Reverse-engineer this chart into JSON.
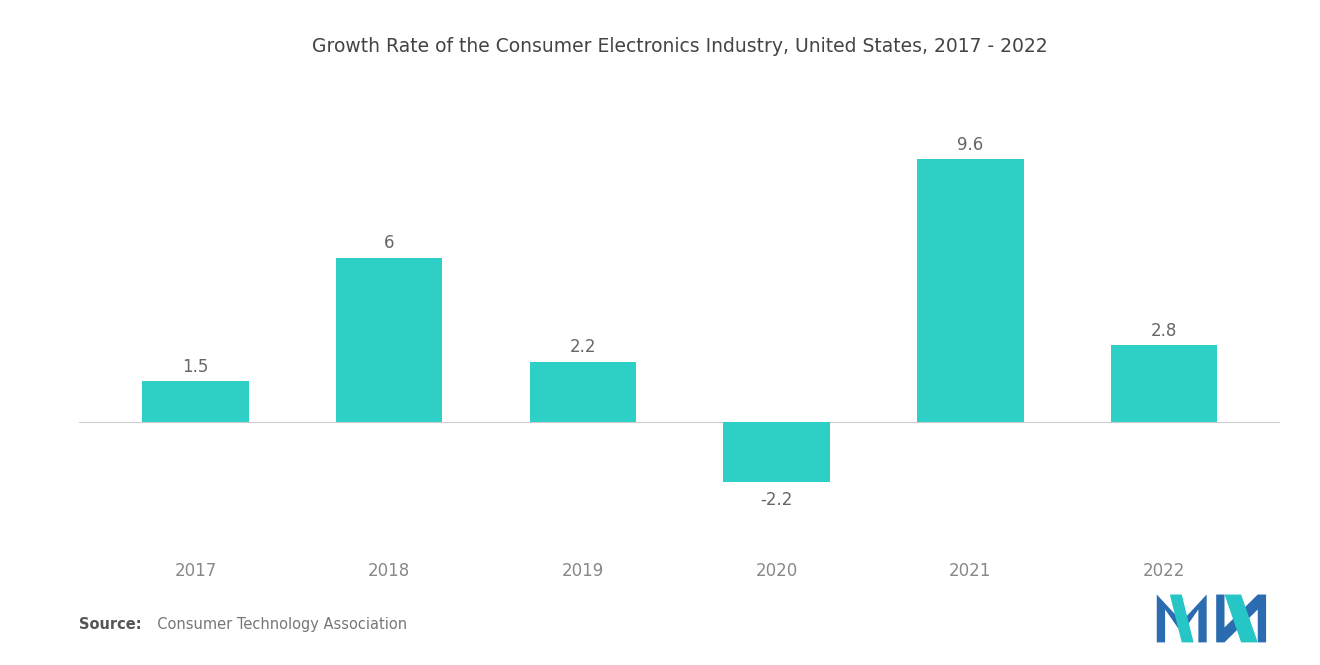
{
  "title": "Growth Rate of the Consumer Electronics Industry, United States, 2017 - 2022",
  "categories": [
    "2017",
    "2018",
    "2019",
    "2020",
    "2021",
    "2022"
  ],
  "values": [
    1.5,
    6.0,
    2.2,
    -2.2,
    9.6,
    2.8
  ],
  "bar_color": "#2ECFC4",
  "background_color": "#ffffff",
  "title_fontsize": 13.5,
  "tick_fontsize": 12,
  "label_fontsize": 12,
  "source_bold": "Source:",
  "source_normal": "  Consumer Technology Association",
  "ylim": [
    -4.5,
    12.5
  ],
  "bar_width": 0.55,
  "logo_m_color": "#2B6CB0",
  "logo_n_color": "#26C6C6",
  "logo_dark": "#1A4F7A",
  "value_color": "#666666",
  "tick_color": "#888888",
  "zero_line_color": "#cccccc"
}
